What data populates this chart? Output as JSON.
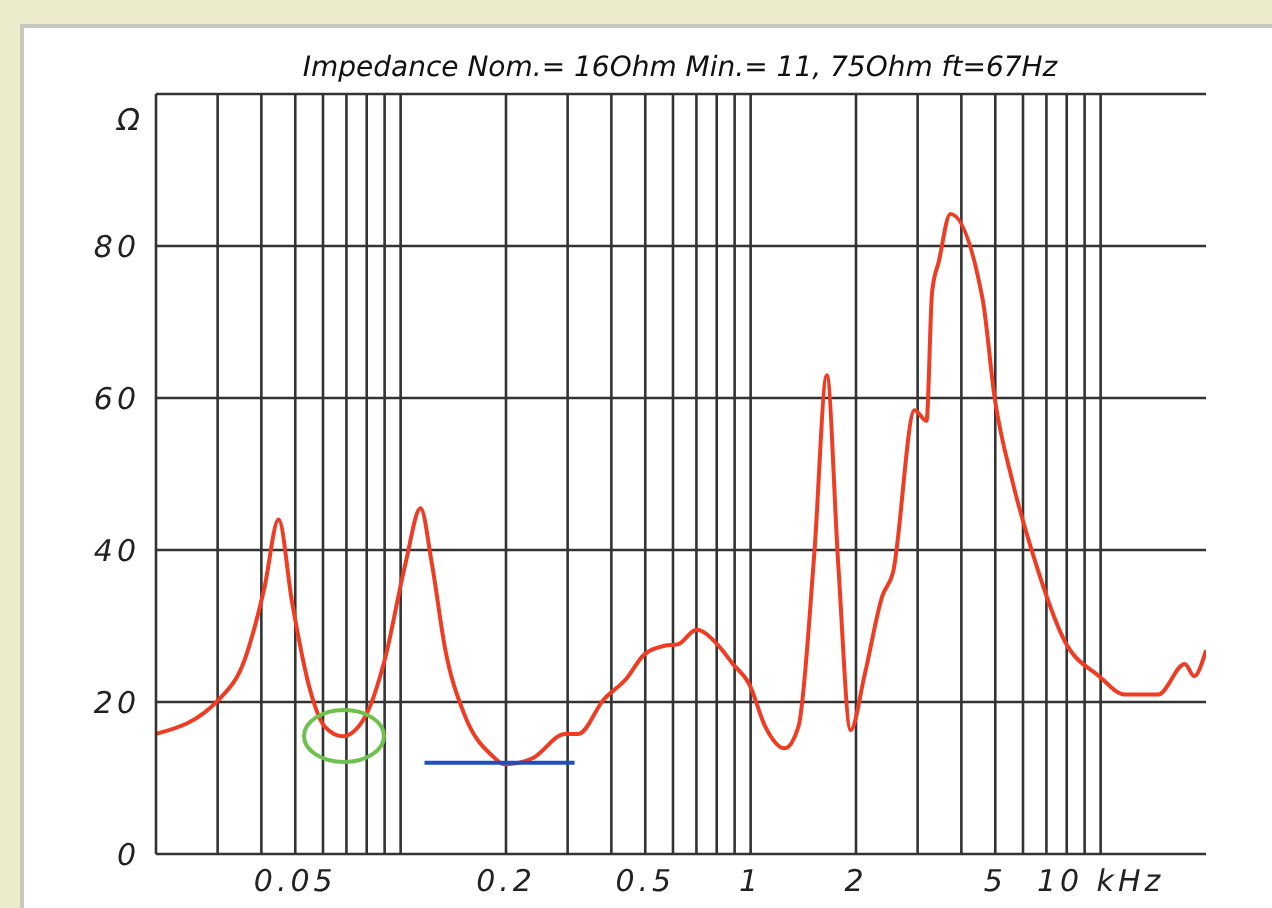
{
  "chart_data": {
    "type": "line",
    "title": "Impedance Nom.= 16Ohm Min.= 11, 75Ohm ft=67Hz",
    "ylabel": "Ω",
    "log": "x",
    "grid": true,
    "marker": "none",
    "line_style": "solid",
    "xlim": [
      0.02,
      20
    ],
    "ylim": [
      0,
      100
    ],
    "xticks": [
      {
        "value": 0.03,
        "label": null
      },
      {
        "value": 0.04,
        "label": null
      },
      0.05,
      {
        "value": 0.06,
        "label": null
      },
      {
        "value": 0.07,
        "label": null
      },
      {
        "value": 0.08,
        "label": null
      },
      {
        "value": 0.09,
        "label": null
      },
      {
        "value": 0.1,
        "label": null
      },
      0.2,
      {
        "value": 0.3,
        "label": null
      },
      {
        "value": 0.4,
        "label": null
      },
      0.5,
      {
        "value": 0.6,
        "label": null
      },
      {
        "value": 0.7,
        "label": null
      },
      {
        "value": 0.8,
        "label": null
      },
      {
        "value": 0.9,
        "label": null
      },
      1,
      2,
      {
        "value": 3,
        "label": null
      },
      {
        "value": 4,
        "label": null
      },
      5,
      {
        "value": 6,
        "label": null
      },
      {
        "value": 7,
        "label": null
      },
      {
        "value": 8,
        "label": null
      },
      {
        "value": 9,
        "label": null
      },
      {
        "value": 10,
        "label": "10 kHz"
      }
    ],
    "yticks": [
      0,
      20,
      40,
      60,
      80,
      {
        "value": 100,
        "label": null
      }
    ],
    "series": [
      {
        "color": "#f03c22",
        "x": [
          0.02,
          0.0302,
          0.0358,
          0.0408,
          0.0448,
          0.049,
          0.0548,
          0.0606,
          0.0683,
          0.079,
          0.09,
          0.103,
          0.114,
          0.123,
          0.134,
          0.152,
          0.183,
          0.198,
          0.238,
          0.295,
          0.322,
          0.38,
          0.44,
          0.498,
          0.568,
          0.62,
          0.7,
          0.81,
          0.89,
          0.99,
          1.1,
          1.25,
          1.37,
          1.52,
          1.65,
          1.78,
          1.93,
          2.12,
          2.38,
          2.55,
          2.94,
          3.18,
          3.3,
          3.45,
          3.72,
          4.6,
          4.98,
          5.6,
          6.4,
          7.9,
          9.9,
          11.7,
          14.6,
          17.4,
          18.5,
          20
        ],
        "values": [
          15.8,
          20.3,
          25.5,
          35,
          44,
          33,
          22,
          16.8,
          15.5,
          18,
          25.5,
          38,
          45.5,
          38,
          27,
          18.4,
          12.9,
          11.8,
          12.6,
          15.8,
          15.8,
          20.3,
          23,
          26.3,
          27.4,
          27.6,
          29.5,
          27.4,
          25,
          22.4,
          16.8,
          13.9,
          16.8,
          39.5,
          63,
          38,
          16.3,
          23.7,
          34,
          37,
          58.4,
          57,
          74,
          78,
          84.2,
          73,
          60,
          49,
          39.5,
          28,
          23.4,
          21,
          21,
          25,
          23.4,
          26.8
        ]
      },
      {
        "type": "line",
        "color": "#1f4fbf",
        "x": [
          0.117,
          0.314
        ],
        "values": [
          12,
          12
        ]
      }
    ]
  }
}
